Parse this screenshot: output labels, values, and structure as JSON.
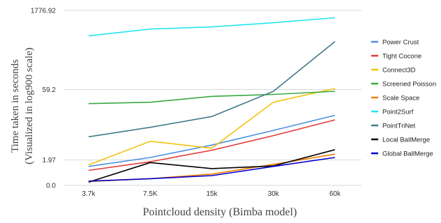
{
  "chart_data": {
    "type": "line",
    "xlabel": "Pointcloud density (Bimba model)",
    "ylabel_line1": "Time taken in seconds",
    "ylabel_line2": "(Visualized in log900 scale)",
    "categories": [
      "3.7k",
      "7.5K",
      "15k",
      "30k",
      "60k"
    ],
    "yscale": "log900",
    "yticks": [
      {
        "label": "0.0",
        "value": 0
      },
      {
        "label": "1.97",
        "value": 1.97
      },
      {
        "label": "59.2",
        "value": 59.2
      },
      {
        "label": "1776.92",
        "value": 1776.92
      }
    ],
    "ylim": [
      0,
      1776.92
    ],
    "grid": "horizontal",
    "legend_position": "right",
    "series": [
      {
        "name": "Power Crust",
        "color": "#4a90e2",
        "values": [
          1.25,
          2.3,
          4.6,
          9.5,
          19.0
        ]
      },
      {
        "name": "Tight Cocone",
        "color": "#e53935",
        "values": [
          0.9,
          1.75,
          3.5,
          7.4,
          15.5
        ]
      },
      {
        "name": "Connect3D",
        "color": "#f4c20d",
        "values": [
          1.4,
          5.6,
          3.9,
          34.0,
          62.0
        ]
      },
      {
        "name": "Screened Poisson",
        "color": "#3aa845",
        "values": [
          32.0,
          34.0,
          44.0,
          48.0,
          55.0
        ]
      },
      {
        "name": "Scale Space",
        "color": "#f57c00",
        "values": [
          0.18,
          0.33,
          0.62,
          1.45,
          2.8
        ]
      },
      {
        "name": "Point2Surf",
        "color": "#22e5f0",
        "values": [
          600.0,
          800.0,
          880.0,
          1050.0,
          1300.0
        ]
      },
      {
        "name": "PointTriNet",
        "color": "#417a8a",
        "values": [
          7.0,
          11.0,
          18.0,
          55.0,
          470.0
        ]
      },
      {
        "name": "Local BallMerge",
        "color": "#000000",
        "values": [
          0.15,
          1.65,
          1.05,
          1.3,
          3.6
        ]
      },
      {
        "name": "Global BallMerge",
        "color": "#0000cc",
        "values": [
          0.2,
          0.33,
          0.52,
          1.25,
          2.3
        ]
      }
    ]
  }
}
